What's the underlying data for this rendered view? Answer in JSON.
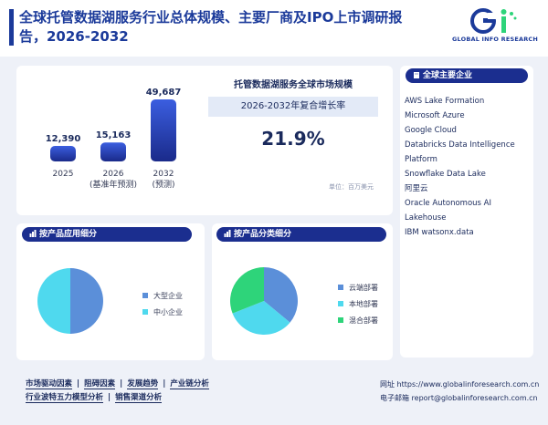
{
  "header": {
    "title": "全球托管数据湖服务行业总体规模、主要厂商及IPO上市调研报告，2026-2032",
    "logo_text": "GLOBAL INFO RESEARCH"
  },
  "market": {
    "title": "托管数据湖服务全球市场规模",
    "cagr_label": "2026-2032年复合增长率",
    "cagr_value": "21.9%",
    "unit": "单位：百万美元"
  },
  "chart_data": {
    "type": "bar",
    "categories": [
      "2025",
      "2026",
      "2032"
    ],
    "category_notes": [
      "",
      "(基准年预测)",
      "(预测)"
    ],
    "values": [
      12390,
      15163,
      49687
    ],
    "value_labels": [
      "12,390",
      "15,163",
      "49,687"
    ],
    "colors": {
      "bar_top": "#3b5ee0",
      "bar_bottom": "#1a2a8a"
    }
  },
  "companies": {
    "heading": "全球主要企业",
    "items": [
      "AWS Lake Formation",
      "Microsoft Azure",
      "Google Cloud",
      "Databricks Data Intelligence",
      "Platform",
      "Snowflake Data Lake",
      "阿里云",
      "Oracle Autonomous AI",
      "Lakehouse",
      "IBM watsonx.data"
    ]
  },
  "application": {
    "heading": "按产品应用细分",
    "slices": [
      {
        "label": "大型企业",
        "value": 50,
        "color": "#5b8fd9"
      },
      {
        "label": "中小企业",
        "value": 50,
        "color": "#4fd9ee"
      }
    ]
  },
  "product_type": {
    "heading": "按产品分类细分",
    "slices": [
      {
        "label": "云端部署",
        "value": 36,
        "color": "#5b8fd9"
      },
      {
        "label": "本地部署",
        "value": 33,
        "color": "#4fd9ee"
      },
      {
        "label": "混合部署",
        "value": 31,
        "color": "#2ed47a"
      }
    ]
  },
  "footer": {
    "links_row1": [
      "市场驱动因素",
      "阻碍因素",
      "发展趋势",
      "产业链分析"
    ],
    "links_row2": [
      "行业波特五力模型分析",
      "销售渠道分析"
    ],
    "website": "网址 https://www.globalinforesearch.com.cn",
    "email": "电子邮箱 report@globalinforesearch.com.cn"
  },
  "colors": {
    "brand": "#1b2e8f",
    "accent_green": "#2ed47a"
  }
}
